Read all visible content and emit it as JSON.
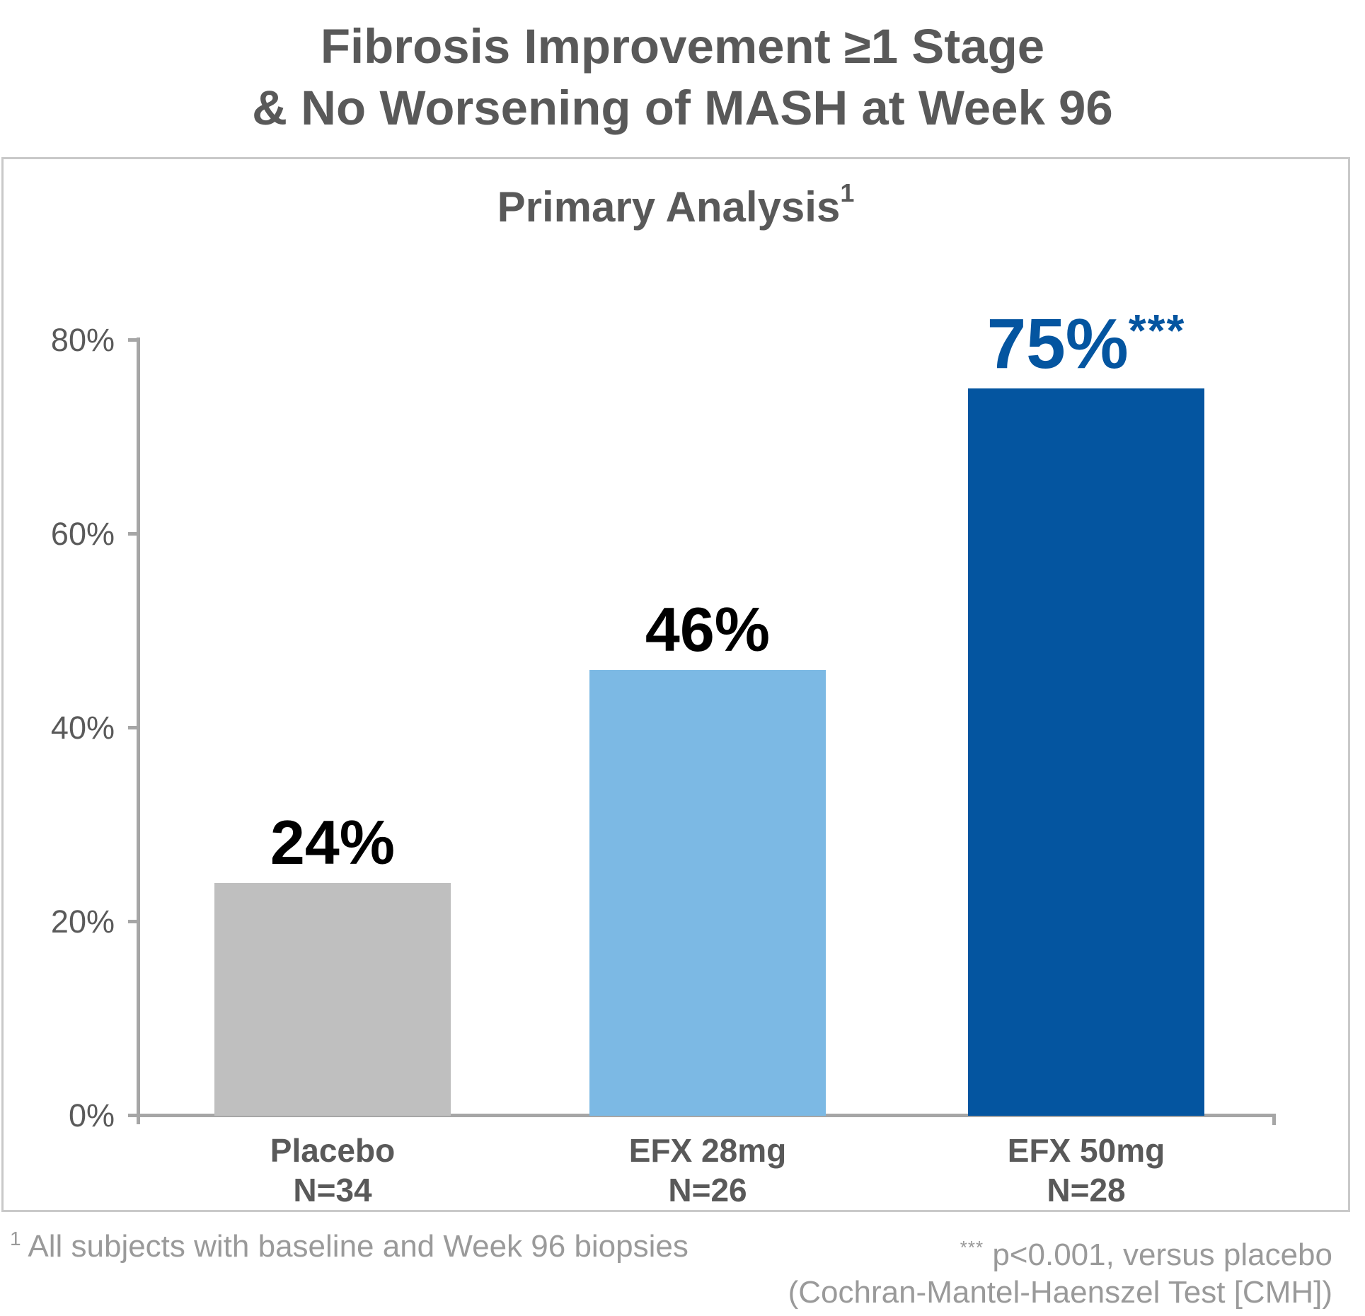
{
  "header": {
    "title_line1": "Fibrosis Improvement ≥1 Stage",
    "title_line2": "& No Worsening of MASH at Week 96"
  },
  "panel": {
    "subtitle": "Primary Analysis",
    "subtitle_superscript": "1"
  },
  "chart_data": {
    "type": "bar",
    "title": "Primary Analysis",
    "categories": [
      "Placebo",
      "EFX 28mg",
      "EFX 50mg"
    ],
    "group_sizes": [
      "N=34",
      "N=26",
      "N=28"
    ],
    "values": [
      24,
      46,
      75
    ],
    "value_labels": [
      "24%",
      "46%",
      "75%"
    ],
    "annotations": [
      "",
      "",
      "***"
    ],
    "bar_colors": [
      "#BFBFBF",
      "#7CB9E4",
      "#0455A0"
    ],
    "value_label_colors": [
      "#000000",
      "#000000",
      "#0455A0"
    ],
    "ylim": [
      0,
      80
    ],
    "yticks": [
      0,
      20,
      40,
      60,
      80
    ],
    "ytick_labels": [
      "0%",
      "20%",
      "40%",
      "60%",
      "80%"
    ],
    "xlabel": "",
    "ylabel": "",
    "grid": false,
    "legend": false
  },
  "footnotes": {
    "left_superscript": "1",
    "left_text": "All subjects with baseline and Week 96 biopsies",
    "right_superscript": "***",
    "right_line1": "p<0.001, versus placebo",
    "right_line2": "(Cochran-Mantel-Haenszel Test [CMH])"
  },
  "colors": {
    "title_gray": "#595959",
    "axis_gray": "#A6A6A6",
    "footnote_gray": "#9A9A9A",
    "panel_border": "#C9C9C9",
    "accent_blue": "#0455A0",
    "light_blue": "#7CB9E4",
    "bar_gray": "#BFBFBF"
  }
}
